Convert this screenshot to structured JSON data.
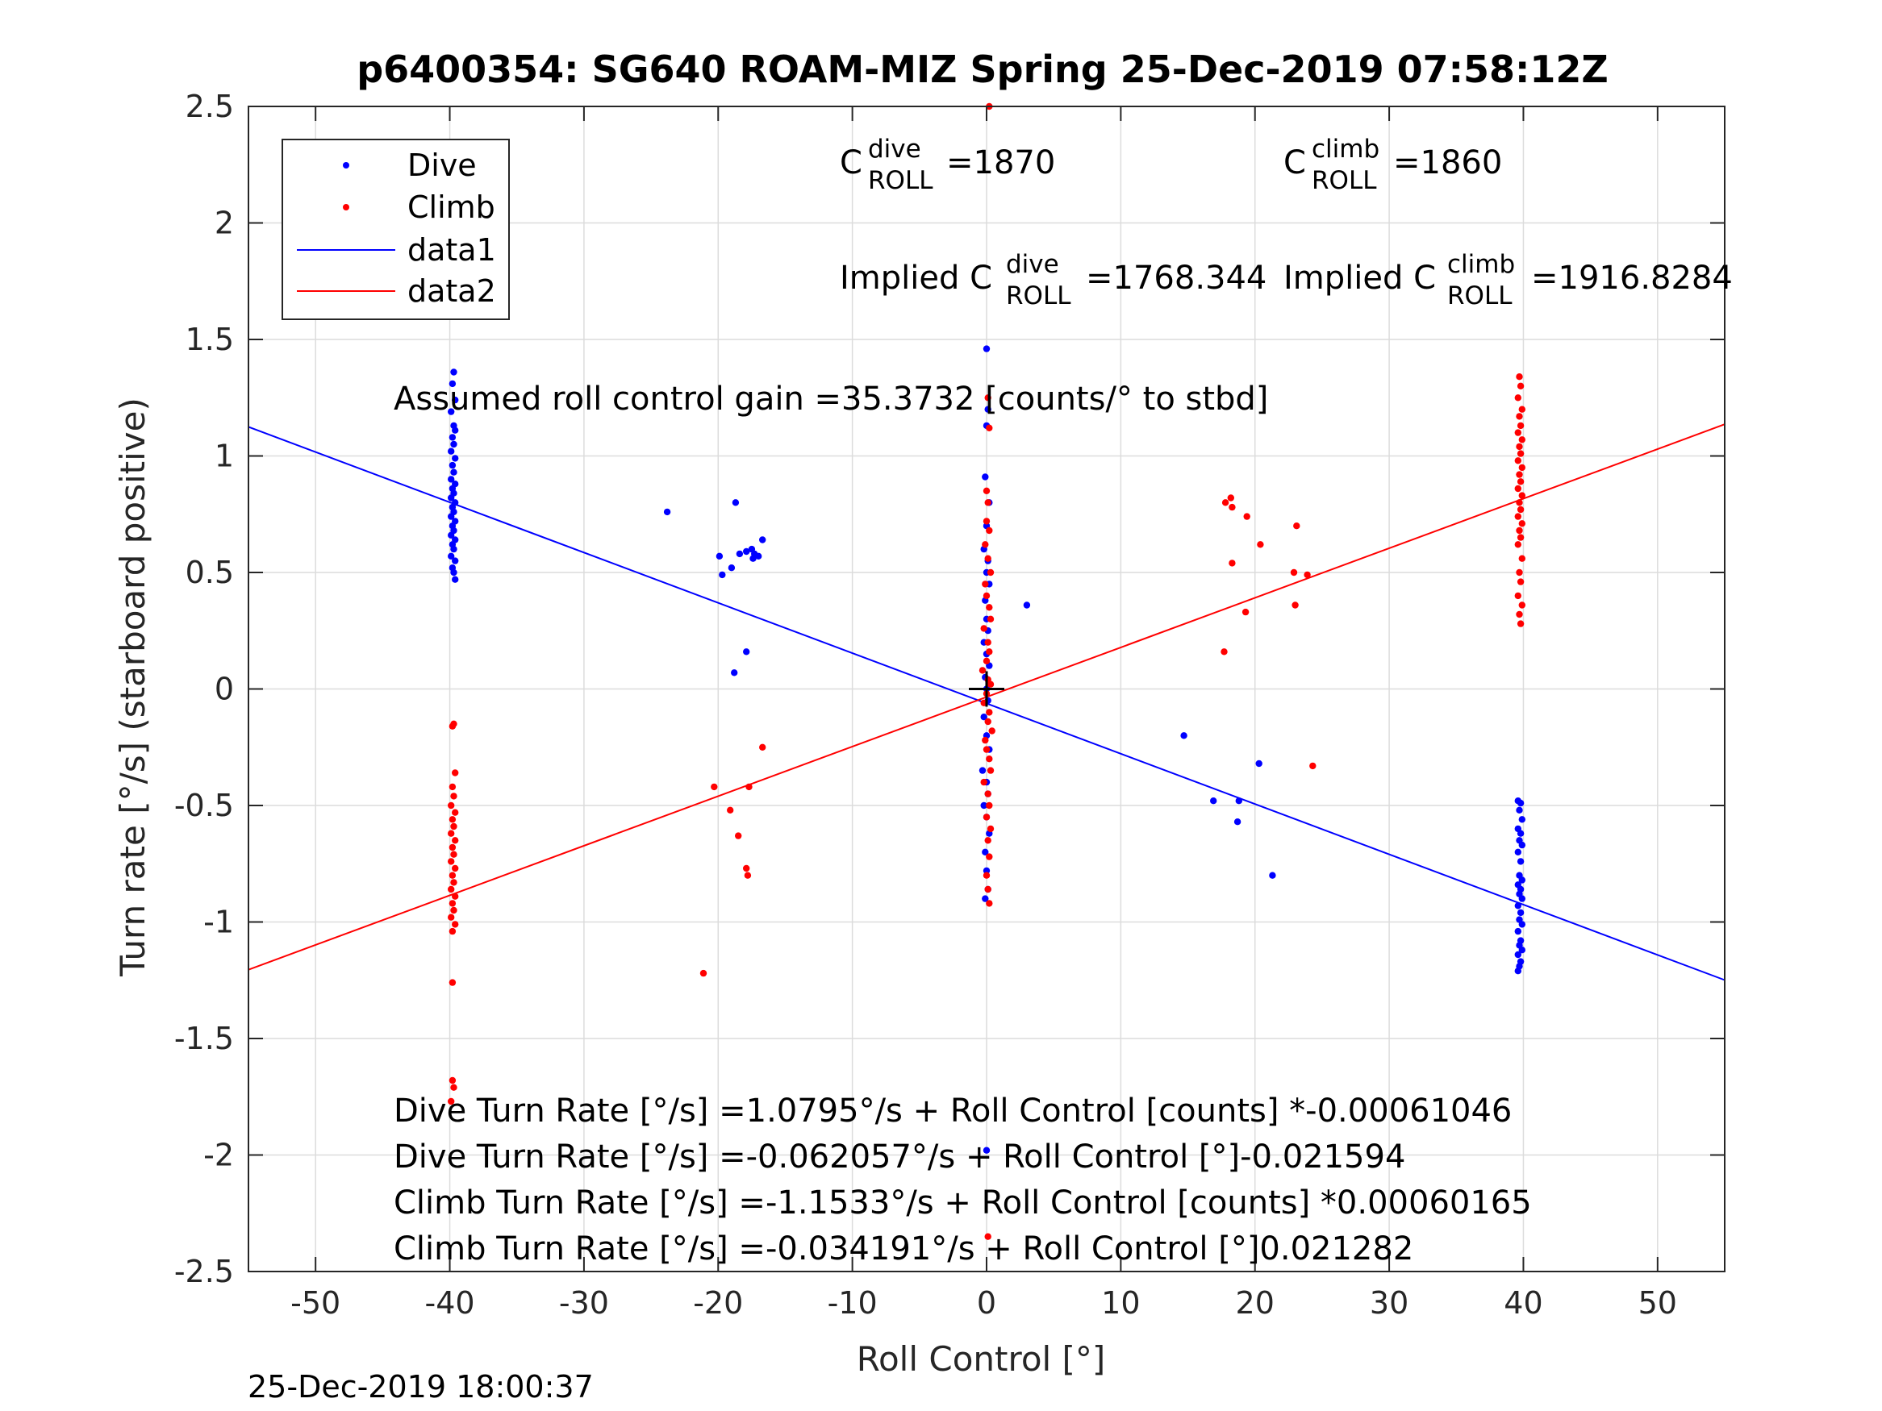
{
  "chart_data": {
    "type": "scatter",
    "title": "p6400354: SG640 ROAM-MIZ Spring 25-Dec-2019 07:58:12Z",
    "xlabel": "Roll Control [°]",
    "ylabel": "Turn rate [°/s] (starboard positive)",
    "xlim": [
      -55,
      55
    ],
    "ylim": [
      -2.5,
      2.5
    ],
    "xticks": [
      -50,
      -40,
      -30,
      -20,
      -10,
      0,
      10,
      20,
      30,
      40,
      50
    ],
    "yticks": [
      -2.5,
      -2,
      -1.5,
      -1,
      -0.5,
      0,
      0.5,
      1,
      1.5,
      2,
      2.5
    ],
    "xtick_labels": [
      "-50",
      "-40",
      "-30",
      "-20",
      "-10",
      "0",
      "10",
      "20",
      "30",
      "40",
      "50"
    ],
    "ytick_labels": [
      "-2.5",
      "-2",
      "-1.5",
      "-1",
      "-0.5",
      "0",
      "0.5",
      "1",
      "1.5",
      "2",
      "2.5"
    ],
    "grid": true,
    "legend_position": "top-left",
    "legend": [
      "Dive",
      "Climb",
      "data1",
      "data2"
    ],
    "colors": {
      "dive": "#0000ff",
      "climb": "#ff0000",
      "marker": "#000000"
    },
    "series": [
      {
        "name": "Dive",
        "kind": "points",
        "color": "#0000ff",
        "points": [
          [
            -39.7,
            1.36
          ],
          [
            -39.8,
            1.31
          ],
          [
            -39.6,
            1.24
          ],
          [
            -39.9,
            1.19
          ],
          [
            -39.7,
            1.13
          ],
          [
            -39.6,
            1.11
          ],
          [
            -39.8,
            1.08
          ],
          [
            -39.7,
            1.05
          ],
          [
            -39.9,
            1.02
          ],
          [
            -39.6,
            0.99
          ],
          [
            -39.8,
            0.96
          ],
          [
            -39.7,
            0.93
          ],
          [
            -39.9,
            0.9
          ],
          [
            -39.6,
            0.88
          ],
          [
            -39.8,
            0.86
          ],
          [
            -39.7,
            0.84
          ],
          [
            -39.9,
            0.82
          ],
          [
            -39.6,
            0.8
          ],
          [
            -39.8,
            0.78
          ],
          [
            -39.7,
            0.76
          ],
          [
            -39.9,
            0.74
          ],
          [
            -39.6,
            0.72
          ],
          [
            -39.8,
            0.7
          ],
          [
            -39.7,
            0.68
          ],
          [
            -39.9,
            0.66
          ],
          [
            -39.6,
            0.64
          ],
          [
            -39.8,
            0.62
          ],
          [
            -39.7,
            0.6
          ],
          [
            -39.9,
            0.57
          ],
          [
            -39.6,
            0.55
          ],
          [
            -39.8,
            0.52
          ],
          [
            -39.7,
            0.5
          ],
          [
            -39.6,
            0.47
          ],
          [
            39.6,
            -0.48
          ],
          [
            39.8,
            -0.49
          ],
          [
            39.7,
            -0.52
          ],
          [
            39.9,
            -0.56
          ],
          [
            39.6,
            -0.6
          ],
          [
            39.8,
            -0.62
          ],
          [
            39.7,
            -0.65
          ],
          [
            39.9,
            -0.67
          ],
          [
            39.6,
            -0.7
          ],
          [
            39.8,
            -0.74
          ],
          [
            39.7,
            -0.8
          ],
          [
            39.9,
            -0.82
          ],
          [
            39.6,
            -0.84
          ],
          [
            39.8,
            -0.86
          ],
          [
            39.7,
            -0.88
          ],
          [
            39.9,
            -0.9
          ],
          [
            39.6,
            -0.93
          ],
          [
            39.8,
            -0.96
          ],
          [
            39.7,
            -0.99
          ],
          [
            39.9,
            -1.01
          ],
          [
            39.6,
            -1.04
          ],
          [
            39.8,
            -1.08
          ],
          [
            39.7,
            -1.1
          ],
          [
            39.9,
            -1.12
          ],
          [
            39.6,
            -1.14
          ],
          [
            39.8,
            -1.17
          ],
          [
            39.7,
            -1.19
          ],
          [
            39.6,
            -1.21
          ],
          [
            -23.8,
            0.76
          ],
          [
            -18.7,
            0.8
          ],
          [
            -19.9,
            0.57
          ],
          [
            -19.7,
            0.49
          ],
          [
            -19.0,
            0.52
          ],
          [
            -18.4,
            0.58
          ],
          [
            -17.9,
            0.59
          ],
          [
            -17.5,
            0.6
          ],
          [
            -17.3,
            0.58
          ],
          [
            -17.0,
            0.57
          ],
          [
            -16.7,
            0.64
          ],
          [
            -17.4,
            0.56
          ],
          [
            -17.9,
            0.16
          ],
          [
            -18.8,
            0.07
          ],
          [
            14.7,
            -0.2
          ],
          [
            16.9,
            -0.48
          ],
          [
            18.8,
            -0.48
          ],
          [
            18.7,
            -0.57
          ],
          [
            20.3,
            -0.32
          ],
          [
            21.3,
            -0.8
          ],
          [
            3.0,
            0.36
          ],
          [
            0.0,
            1.46
          ],
          [
            0.1,
            1.2
          ],
          [
            0.0,
            1.13
          ],
          [
            -0.1,
            0.91
          ],
          [
            0.2,
            0.8
          ],
          [
            0.0,
            0.7
          ],
          [
            -0.2,
            0.6
          ],
          [
            0.1,
            0.55
          ],
          [
            0.0,
            0.5
          ],
          [
            0.2,
            0.45
          ],
          [
            -0.1,
            0.38
          ],
          [
            0.0,
            0.3
          ],
          [
            0.1,
            0.25
          ],
          [
            -0.2,
            0.2
          ],
          [
            0.0,
            0.15
          ],
          [
            0.2,
            0.1
          ],
          [
            -0.1,
            0.05
          ],
          [
            0.0,
            0.0
          ],
          [
            0.1,
            -0.05
          ],
          [
            -0.2,
            -0.12
          ],
          [
            0.0,
            -0.2
          ],
          [
            0.2,
            -0.26
          ],
          [
            -0.3,
            -0.35
          ],
          [
            0.0,
            -0.4
          ],
          [
            0.1,
            -0.45
          ],
          [
            -0.2,
            -0.5
          ],
          [
            0.0,
            -0.55
          ],
          [
            0.2,
            -0.62
          ],
          [
            -0.1,
            -0.7
          ],
          [
            0.0,
            -0.78
          ],
          [
            0.1,
            -0.86
          ],
          [
            -0.1,
            -0.9
          ],
          [
            0.0,
            -1.98
          ]
        ]
      },
      {
        "name": "Climb",
        "kind": "points",
        "color": "#ff0000",
        "points": [
          [
            -39.7,
            -0.15
          ],
          [
            -39.8,
            -0.16
          ],
          [
            -39.6,
            -0.36
          ],
          [
            -39.8,
            -0.42
          ],
          [
            -39.7,
            -0.46
          ],
          [
            -39.9,
            -0.5
          ],
          [
            -39.6,
            -0.53
          ],
          [
            -39.8,
            -0.56
          ],
          [
            -39.7,
            -0.59
          ],
          [
            -39.9,
            -0.62
          ],
          [
            -39.6,
            -0.65
          ],
          [
            -39.8,
            -0.68
          ],
          [
            -39.7,
            -0.71
          ],
          [
            -39.9,
            -0.74
          ],
          [
            -39.6,
            -0.77
          ],
          [
            -39.8,
            -0.8
          ],
          [
            -39.7,
            -0.83
          ],
          [
            -39.9,
            -0.86
          ],
          [
            -39.6,
            -0.89
          ],
          [
            -39.8,
            -0.92
          ],
          [
            -39.7,
            -0.95
          ],
          [
            -39.9,
            -0.98
          ],
          [
            -39.6,
            -1.01
          ],
          [
            -39.8,
            -1.04
          ],
          [
            -39.8,
            -1.26
          ],
          [
            -39.8,
            -1.68
          ],
          [
            -39.7,
            -1.71
          ],
          [
            -39.9,
            -1.77
          ],
          [
            39.7,
            1.34
          ],
          [
            39.8,
            1.3
          ],
          [
            39.6,
            1.25
          ],
          [
            39.9,
            1.2
          ],
          [
            39.7,
            1.17
          ],
          [
            39.8,
            1.13
          ],
          [
            39.6,
            1.1
          ],
          [
            39.9,
            1.07
          ],
          [
            39.7,
            1.04
          ],
          [
            39.8,
            1.01
          ],
          [
            39.6,
            0.98
          ],
          [
            39.9,
            0.95
          ],
          [
            39.7,
            0.92
          ],
          [
            39.8,
            0.89
          ],
          [
            39.6,
            0.86
          ],
          [
            39.9,
            0.83
          ],
          [
            39.7,
            0.8
          ],
          [
            39.8,
            0.77
          ],
          [
            39.6,
            0.74
          ],
          [
            39.9,
            0.71
          ],
          [
            39.7,
            0.68
          ],
          [
            39.8,
            0.65
          ],
          [
            39.6,
            0.62
          ],
          [
            39.9,
            0.56
          ],
          [
            39.7,
            0.5
          ],
          [
            39.8,
            0.46
          ],
          [
            39.6,
            0.4
          ],
          [
            39.9,
            0.36
          ],
          [
            39.7,
            0.32
          ],
          [
            39.8,
            0.28
          ],
          [
            -21.1,
            -1.22
          ],
          [
            -20.3,
            -0.42
          ],
          [
            -19.1,
            -0.52
          ],
          [
            -18.5,
            -0.63
          ],
          [
            -17.7,
            -0.42
          ],
          [
            -17.9,
            -0.77
          ],
          [
            -17.8,
            -0.8
          ],
          [
            -16.7,
            -0.25
          ],
          [
            17.8,
            0.8
          ],
          [
            18.2,
            0.82
          ],
          [
            18.3,
            0.78
          ],
          [
            19.4,
            0.74
          ],
          [
            20.4,
            0.62
          ],
          [
            22.9,
            0.5
          ],
          [
            23.1,
            0.7
          ],
          [
            23.9,
            0.49
          ],
          [
            18.3,
            0.54
          ],
          [
            19.3,
            0.33
          ],
          [
            23.0,
            0.36
          ],
          [
            17.7,
            0.16
          ],
          [
            24.3,
            -0.33
          ],
          [
            0.2,
            2.5
          ],
          [
            0.1,
            1.25
          ],
          [
            0.2,
            1.12
          ],
          [
            0.0,
            0.85
          ],
          [
            0.1,
            0.8
          ],
          [
            0.0,
            0.72
          ],
          [
            0.2,
            0.68
          ],
          [
            -0.1,
            0.62
          ],
          [
            0.1,
            0.56
          ],
          [
            0.3,
            0.5
          ],
          [
            -0.1,
            0.45
          ],
          [
            0.0,
            0.4
          ],
          [
            0.2,
            0.35
          ],
          [
            0.3,
            0.3
          ],
          [
            -0.2,
            0.26
          ],
          [
            0.1,
            0.2
          ],
          [
            0.2,
            0.16
          ],
          [
            0.0,
            0.12
          ],
          [
            -0.3,
            0.08
          ],
          [
            0.1,
            0.04
          ],
          [
            0.3,
            0.02
          ],
          [
            0.0,
            -0.02
          ],
          [
            -0.2,
            -0.06
          ],
          [
            0.2,
            -0.1
          ],
          [
            0.1,
            -0.14
          ],
          [
            0.4,
            -0.18
          ],
          [
            -0.1,
            -0.22
          ],
          [
            0.0,
            -0.26
          ],
          [
            0.2,
            -0.3
          ],
          [
            0.3,
            -0.35
          ],
          [
            -0.2,
            -0.4
          ],
          [
            0.1,
            -0.45
          ],
          [
            0.2,
            -0.5
          ],
          [
            0.0,
            -0.55
          ],
          [
            0.3,
            -0.6
          ],
          [
            0.1,
            -0.65
          ],
          [
            0.2,
            -0.72
          ],
          [
            0.0,
            -0.8
          ],
          [
            0.1,
            -0.86
          ],
          [
            0.2,
            -0.92
          ],
          [
            0.1,
            -2.35
          ]
        ]
      },
      {
        "name": "data1",
        "kind": "line",
        "color": "#0000ff",
        "points": [
          [
            -55,
            1.125
          ],
          [
            55,
            -1.249
          ]
        ]
      },
      {
        "name": "data2",
        "kind": "line",
        "color": "#ff0000",
        "points": [
          [
            -55,
            -1.205
          ],
          [
            55,
            1.136
          ]
        ]
      }
    ],
    "center_marker": [
      0,
      0
    ],
    "annotations": {
      "c_dive": {
        "base": "C",
        "sup": "dive",
        "sub": "ROLL",
        "value": "=1870"
      },
      "c_climb": {
        "base": "C",
        "sup": "climb",
        "sub": "ROLL",
        "value": "=1860"
      },
      "implied_dive": {
        "prefix": "Implied C",
        "sup": "dive",
        "sub": "ROLL",
        "value": "=1768.344"
      },
      "implied_climb": {
        "prefix": "Implied C",
        "sup": "climb",
        "sub": "ROLL",
        "value": "=1916.8284"
      },
      "gain": "Assumed roll control gain =35.3732 [counts/° to stbd]",
      "fits": [
        "Dive Turn Rate [°/s] =1.0795°/s + Roll Control [counts] *-0.00061046",
        "Dive Turn Rate [°/s] =-0.062057°/s + Roll Control [°]-0.021594",
        "Climb Turn Rate [°/s] =-1.1533°/s + Roll Control [counts] *0.00060165",
        "Climb Turn Rate [°/s] =-0.034191°/s + Roll Control [°]0.021282"
      ]
    },
    "timestamp": "25-Dec-2019 18:00:37"
  }
}
